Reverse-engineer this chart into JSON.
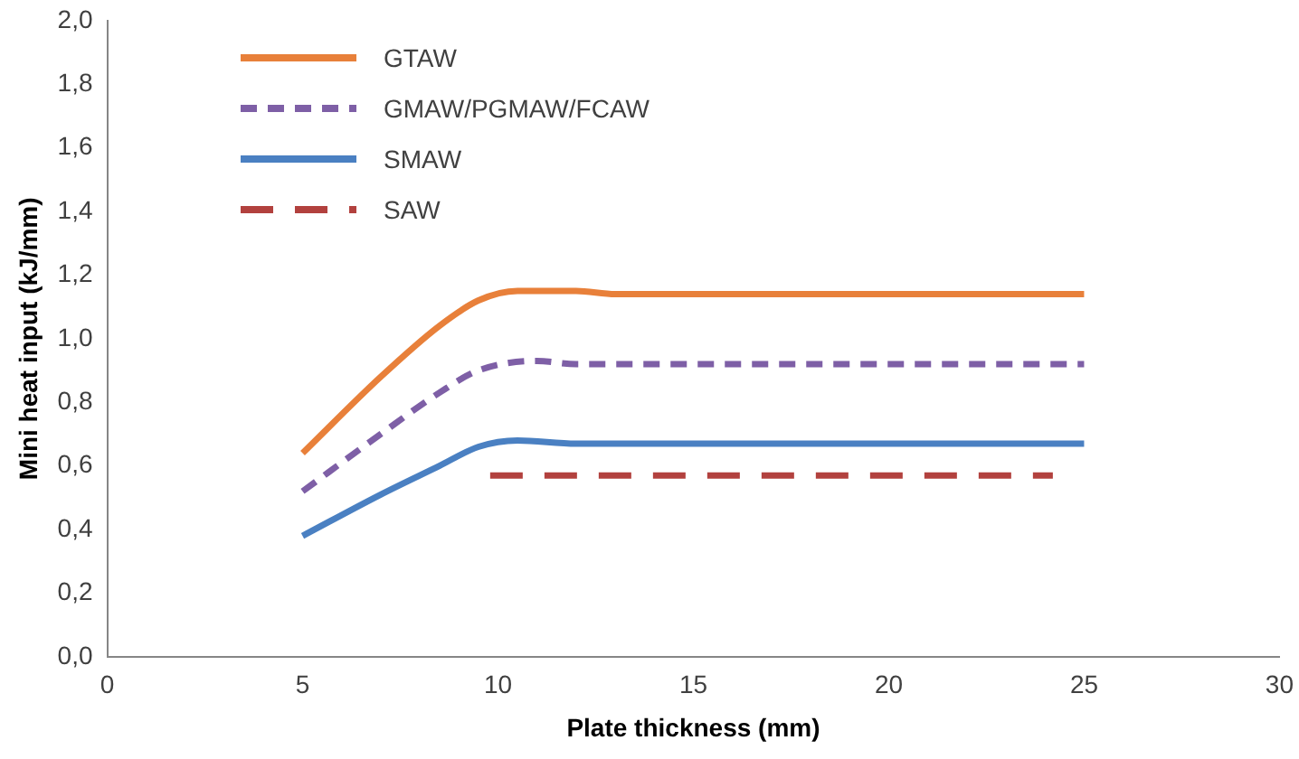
{
  "chart_data": {
    "type": "line",
    "xlabel": "Plate thickness (mm)",
    "ylabel": "Mini heat input (kJ/mm)",
    "xlim": [
      0,
      30
    ],
    "xticks": [
      0,
      5,
      10,
      15,
      20,
      25,
      30
    ],
    "ylim": [
      0,
      2
    ],
    "yticks": [
      {
        "value": 0,
        "label": "0,0"
      },
      {
        "value": 0.2,
        "label": "0,2"
      },
      {
        "value": 0.4,
        "label": "0,4"
      },
      {
        "value": 0.6,
        "label": "0,6"
      },
      {
        "value": 0.8,
        "label": "0,8"
      },
      {
        "value": 1,
        "label": "1,0"
      },
      {
        "value": 1.2,
        "label": "1,2"
      },
      {
        "value": 1.4,
        "label": "1,4"
      },
      {
        "value": 1.6,
        "label": "1,6"
      },
      {
        "value": 1.8,
        "label": "1,8"
      },
      {
        "value": 2,
        "label": "2,0"
      }
    ],
    "grid": false,
    "legend": "top left",
    "marker": "none",
    "series": [
      {
        "name": "GTAW",
        "color": "#e8803a",
        "line_style": "solid",
        "x": [
          5,
          7,
          8.5,
          9.5,
          10.5,
          12,
          13,
          25
        ],
        "values": [
          0.64,
          0.88,
          1.04,
          1.12,
          1.15,
          1.15,
          1.14,
          1.14
        ]
      },
      {
        "name": "GMAW/PGMAW/FCAW",
        "color": "#7e5fa6",
        "line_style": "dashed",
        "x": [
          5,
          7,
          8.5,
          9.5,
          11,
          12,
          25
        ],
        "values": [
          0.52,
          0.7,
          0.83,
          0.9,
          0.93,
          0.92,
          0.92
        ]
      },
      {
        "name": "SMAW",
        "color": "#4a80c2",
        "line_style": "solid",
        "x": [
          5,
          7,
          8.5,
          9.5,
          10.5,
          12,
          25
        ],
        "values": [
          0.38,
          0.51,
          0.6,
          0.66,
          0.68,
          0.67,
          0.67
        ]
      },
      {
        "name": "SAW",
        "color": "#b2413e",
        "line_style": "dashed",
        "x": [
          9.8,
          24.2
        ],
        "values": [
          0.57,
          0.57
        ]
      }
    ]
  }
}
